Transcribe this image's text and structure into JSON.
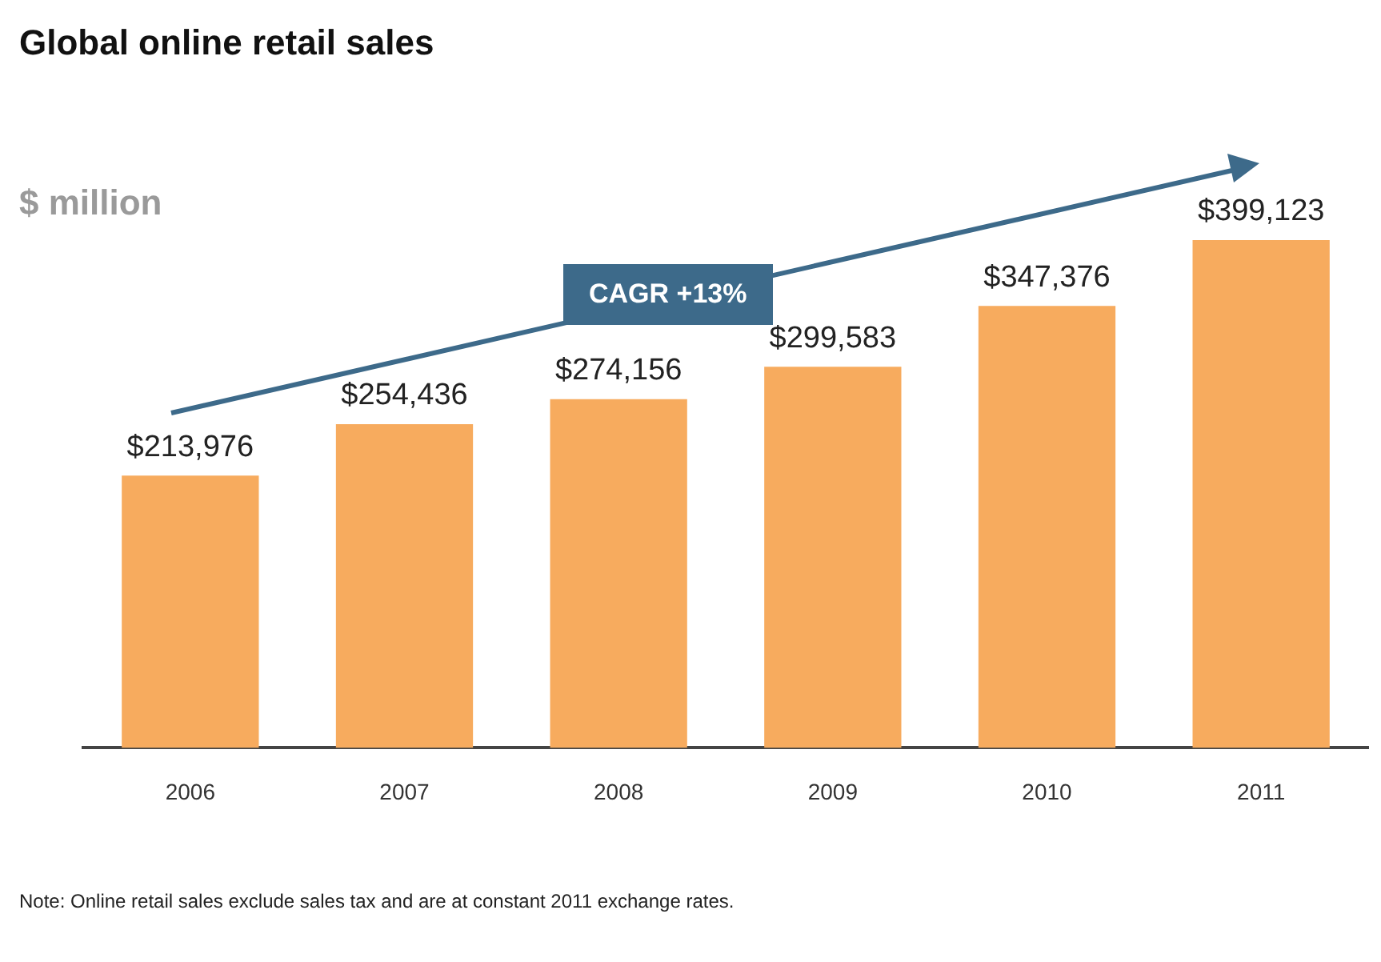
{
  "chart_data": {
    "type": "bar",
    "title": "Global online retail sales",
    "ylabel": "$ million",
    "categories": [
      "2006",
      "2007",
      "2008",
      "2009",
      "2010",
      "2011"
    ],
    "values": [
      213976,
      254436,
      274156,
      299583,
      347376,
      399123
    ],
    "value_labels": [
      "$213,976",
      "$254,436",
      "$274,156",
      "$299,583",
      "$347,376",
      "$399,123"
    ],
    "color": "#f7ab5e",
    "tick_labels": "x",
    "annotations": [
      "CAGR +13%",
      "Note: Online retail sales exclude sales tax and are at constant 2011 exchange rates."
    ]
  }
}
